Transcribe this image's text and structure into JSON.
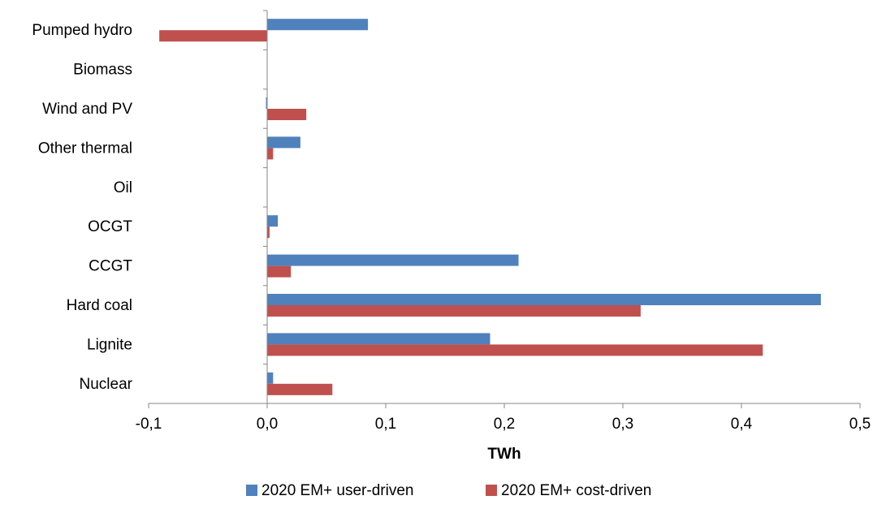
{
  "chart_data": {
    "type": "bar",
    "orientation": "horizontal",
    "title": "",
    "xlabel": "TWh",
    "ylabel": "",
    "xlim": [
      -0.1,
      0.5
    ],
    "x_ticks": [
      -0.1,
      0.0,
      0.1,
      0.2,
      0.3,
      0.4,
      0.5
    ],
    "x_tick_labels": [
      "-0,1",
      "0,0",
      "0,1",
      "0,2",
      "0,3",
      "0,4",
      "0,5"
    ],
    "categories": [
      "Pumped hydro",
      "Biomass",
      "Wind and PV",
      "Other thermal",
      "Oil",
      "OCGT",
      "CCGT",
      "Hard coal",
      "Lignite",
      "Nuclear"
    ],
    "series": [
      {
        "name": "2020 EM+ user-driven",
        "color": "#4f81bd",
        "values": [
          0.085,
          0.0,
          -0.001,
          0.028,
          0.0,
          0.009,
          0.212,
          0.467,
          0.188,
          0.005
        ]
      },
      {
        "name": "2020 EM+ cost-driven",
        "color": "#c0504d",
        "values": [
          -0.091,
          0.0,
          0.033,
          0.005,
          0.0,
          0.002,
          0.02,
          0.315,
          0.418,
          0.055
        ]
      }
    ],
    "grid": false,
    "legend_position": "bottom"
  }
}
